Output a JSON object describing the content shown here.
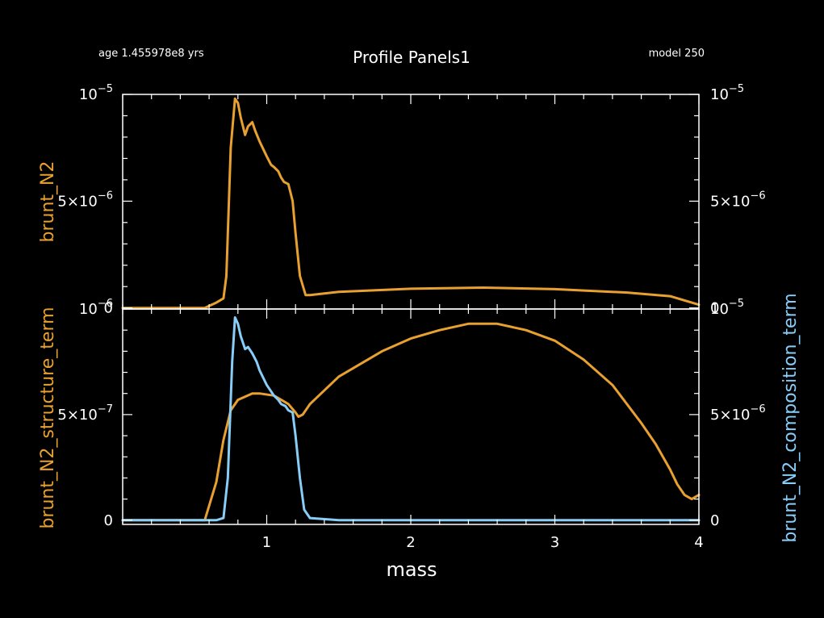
{
  "header": {
    "title": "Profile Panels1",
    "age_label": "age 1.455978e8 yrs",
    "model_label": "model 250"
  },
  "colors": {
    "background": "#000000",
    "axes": "#ffffff",
    "orange": "#E8A030",
    "blue": "#88CCF8"
  },
  "chart_data": [
    {
      "type": "line",
      "panel": "top",
      "xlim": [
        0,
        4
      ],
      "ylim": [
        -5e-08,
        1e-05
      ],
      "left_ylabel": "brunt_N2",
      "left_yticks": [
        {
          "value": 1e-05,
          "label": "10",
          "exponent": "−5"
        },
        {
          "value": 5e-06,
          "label": "5×10",
          "exponent": "−6"
        },
        {
          "value": 0,
          "label": "0",
          "exponent": ""
        }
      ],
      "right_yticks": [
        {
          "value": 1e-05,
          "label": "10",
          "exponent": "−5"
        },
        {
          "value": 5e-06,
          "label": "5×10",
          "exponent": "−6"
        },
        {
          "value": 0,
          "label": "0",
          "exponent": ""
        }
      ],
      "series": [
        {
          "name": "brunt_N2",
          "color": "#E8A030",
          "x": [
            0.0,
            0.57,
            0.65,
            0.7,
            0.72,
            0.75,
            0.78,
            0.8,
            0.82,
            0.85,
            0.87,
            0.9,
            0.92,
            0.95,
            1.0,
            1.03,
            1.05,
            1.08,
            1.1,
            1.12,
            1.15,
            1.18,
            1.2,
            1.23,
            1.27,
            1.3,
            1.5,
            2.0,
            2.5,
            3.0,
            3.5,
            3.8,
            4.0
          ],
          "y": [
            0.0,
            0.0,
            2.5e-07,
            4.5e-07,
            1.5e-06,
            7.5e-06,
            9.8e-06,
            9.6e-06,
            8.9e-06,
            8.1e-06,
            8.5e-06,
            8.7e-06,
            8.3e-06,
            7.8e-06,
            7.1e-06,
            6.7e-06,
            6.6e-06,
            6.4e-06,
            6.1e-06,
            5.9e-06,
            5.8e-06,
            5e-06,
            3.5e-06,
            1.5e-06,
            6e-07,
            6e-07,
            7.5e-07,
            9e-07,
            9.5e-07,
            8.8e-07,
            7.2e-07,
            5.5e-07,
            1.5e-07
          ]
        }
      ]
    },
    {
      "type": "line",
      "panel": "bottom",
      "xlim": [
        0,
        4
      ],
      "xlabel": "mass",
      "xticks": [
        1,
        2,
        3,
        4
      ],
      "ylim_left": [
        -2e-08,
        1e-06
      ],
      "ylim_right": [
        -2e-07,
        1e-05
      ],
      "left_ylabel": "brunt_N2_structure_term",
      "right_ylabel": "brunt_N2_composition_term",
      "left_yticks": [
        {
          "value": 1e-06,
          "label": "10",
          "exponent": "−6"
        },
        {
          "value": 5e-07,
          "label": "5×10",
          "exponent": "−7"
        },
        {
          "value": 0,
          "label": "0",
          "exponent": ""
        }
      ],
      "right_yticks": [
        {
          "value": 1e-05,
          "label": "10",
          "exponent": "−5"
        },
        {
          "value": 5e-06,
          "label": "5×10",
          "exponent": "−6"
        },
        {
          "value": 0,
          "label": "0",
          "exponent": ""
        }
      ],
      "series": [
        {
          "name": "brunt_N2_structure_term",
          "axis": "left",
          "color": "#E8A030",
          "x": [
            0.0,
            0.57,
            0.65,
            0.7,
            0.75,
            0.8,
            0.9,
            0.95,
            1.05,
            1.1,
            1.15,
            1.2,
            1.22,
            1.25,
            1.3,
            1.5,
            1.8,
            2.0,
            2.2,
            2.4,
            2.5,
            2.6,
            2.8,
            3.0,
            3.2,
            3.4,
            3.6,
            3.7,
            3.8,
            3.85,
            3.9,
            3.95,
            4.0
          ],
          "y": [
            0.0,
            0.0,
            1.8e-07,
            3.8e-07,
            5.2e-07,
            5.7e-07,
            6e-07,
            6e-07,
            5.9e-07,
            5.7e-07,
            5.5e-07,
            5.1e-07,
            4.9e-07,
            5e-07,
            5.5e-07,
            6.8e-07,
            8e-07,
            8.6e-07,
            9e-07,
            9.3e-07,
            9.3e-07,
            9.3e-07,
            9e-07,
            8.5e-07,
            7.6e-07,
            6.4e-07,
            4.6e-07,
            3.6e-07,
            2.4e-07,
            1.7e-07,
            1.2e-07,
            1e-07,
            1.2e-07
          ]
        },
        {
          "name": "brunt_N2_composition_term",
          "axis": "right",
          "color": "#88CCF8",
          "x": [
            0.0,
            0.65,
            0.7,
            0.73,
            0.76,
            0.78,
            0.8,
            0.82,
            0.85,
            0.87,
            0.9,
            0.93,
            0.95,
            1.0,
            1.05,
            1.08,
            1.1,
            1.13,
            1.15,
            1.18,
            1.2,
            1.23,
            1.26,
            1.3,
            1.5,
            4.0
          ],
          "y": [
            0.0,
            0.0,
            1e-07,
            2e-06,
            7.5e-06,
            9.6e-06,
            9.3e-06,
            8.7e-06,
            8.1e-06,
            8.2e-06,
            7.9e-06,
            7.5e-06,
            7.1e-06,
            6.4e-06,
            5.9e-06,
            5.7e-06,
            5.5e-06,
            5.4e-06,
            5.2e-06,
            5.1e-06,
            4e-06,
            2e-06,
            5e-07,
            1e-07,
            0.0,
            0.0
          ]
        }
      ]
    }
  ]
}
